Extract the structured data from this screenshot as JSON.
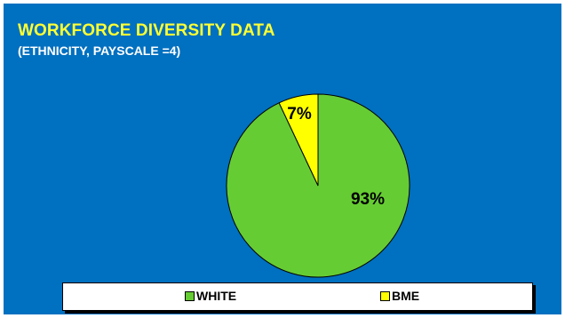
{
  "slide": {
    "title": "WORKFORCE DIVERSITY DATA",
    "subtitle": "(ETHNICITY, PAYSCALE =4)"
  },
  "colors": {
    "background": "#0070c0",
    "title": "#ffff33",
    "white_slice": "#66cc33",
    "bme_slice": "#ffff00"
  },
  "chart_data": {
    "type": "pie",
    "categories": [
      "WHITE",
      "BME"
    ],
    "values": [
      93,
      7
    ],
    "data_labels": [
      "93%",
      "7%"
    ],
    "legend_position": "bottom"
  },
  "legend": {
    "items": [
      {
        "label": "WHITE",
        "color": "#66cc33"
      },
      {
        "label": "BME",
        "color": "#ffff00"
      }
    ]
  }
}
